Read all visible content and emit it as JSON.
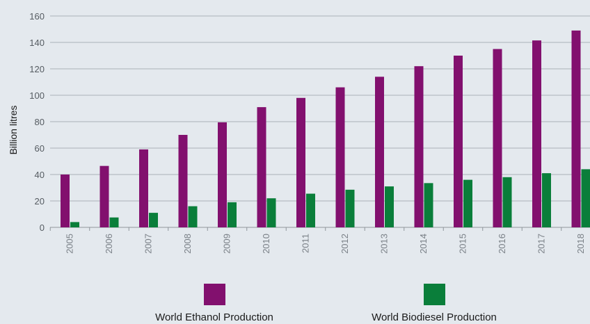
{
  "chart_data": {
    "type": "bar",
    "ylabel": "Billion litres",
    "xlabel": "",
    "ylim": [
      0,
      160
    ],
    "yticks": [
      0,
      20,
      40,
      60,
      80,
      100,
      120,
      140,
      160
    ],
    "grid": true,
    "legend_position": "bottom",
    "categories": [
      "2005",
      "2006",
      "2007",
      "2008",
      "2009",
      "2010",
      "2011",
      "2012",
      "2013",
      "2014",
      "2015",
      "2016",
      "2017",
      "2018"
    ],
    "series": [
      {
        "name": "World Ethanol Production",
        "color": "#82106e",
        "values": [
          40,
          46.5,
          59,
          70,
          79.5,
          91,
          98,
          106,
          114,
          122,
          130,
          135,
          141.5,
          149
        ]
      },
      {
        "name": "World Biodiesel Production",
        "color": "#0a7e3a",
        "values": [
          4,
          7.5,
          11,
          16,
          19,
          22,
          25.5,
          28.5,
          31,
          33.5,
          36,
          38,
          41,
          44
        ]
      }
    ]
  }
}
